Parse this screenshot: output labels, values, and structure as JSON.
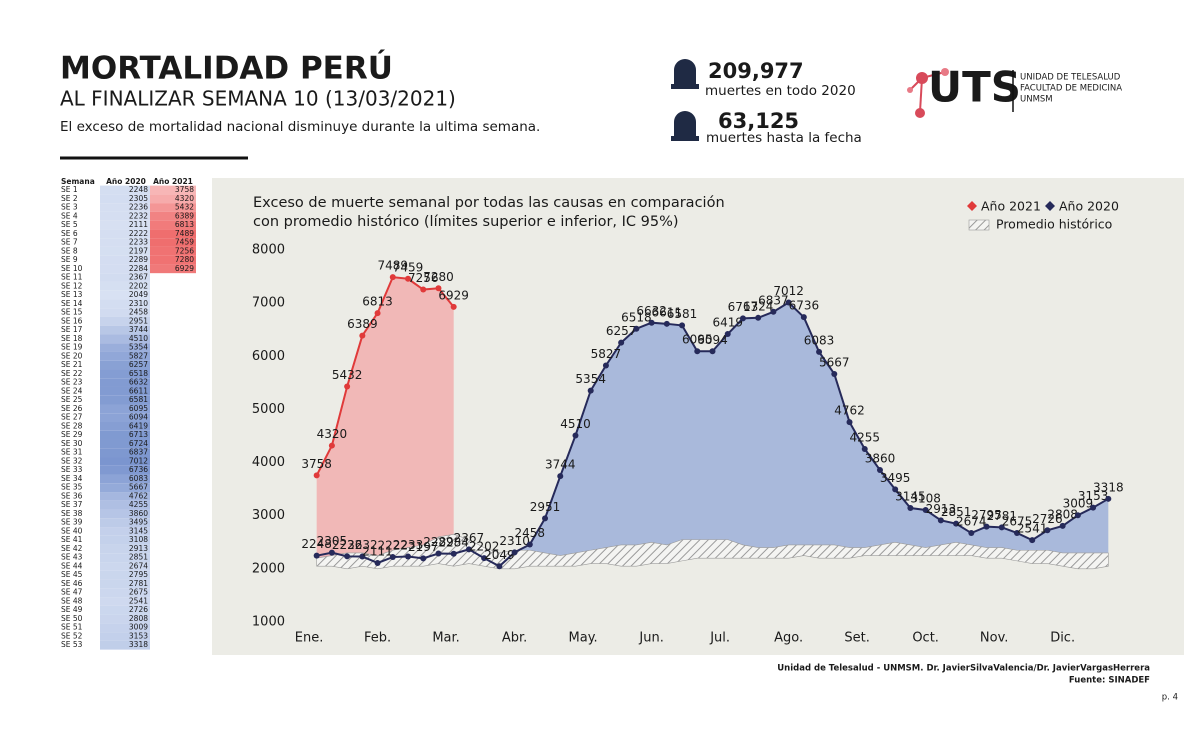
{
  "header": {
    "title": "MORTALIDAD PERÚ",
    "subtitle": "AL FINALIZAR SEMANA 10 (13/03/2021)",
    "description": "El exceso de mortalidad nacional disminuye durante la ultima semana."
  },
  "stats": [
    {
      "value": "209,977",
      "label": "muertes en todo 2020"
    },
    {
      "value": "63,125",
      "label": "muertes hasta la fecha"
    }
  ],
  "logo": {
    "name": "UTS",
    "lines": [
      "UNIDAD DE TELESALUD",
      "FACULTAD DE MEDICINA",
      "UNMSM"
    ]
  },
  "table": {
    "columns": [
      "Semana",
      "Año 2020",
      "Año 2021"
    ]
  },
  "chart_data": {
    "type": "line",
    "title": [
      "Exceso de muerte semanal por todas las causas en comparación",
      "con promedio histórico (límites superior e inferior, IC 95%)"
    ],
    "categories": [
      "SE 1",
      "SE 2",
      "SE 3",
      "SE 4",
      "SE 5",
      "SE 6",
      "SE 7",
      "SE 8",
      "SE 9",
      "SE 10",
      "SE 11",
      "SE 12",
      "SE 13",
      "SE 14",
      "SE 15",
      "SE 16",
      "SE 17",
      "SE 18",
      "SE 19",
      "SE 20",
      "SE 21",
      "SE 22",
      "SE 23",
      "SE 24",
      "SE 25",
      "SE 26",
      "SE 27",
      "SE 28",
      "SE 29",
      "SE 30",
      "SE 31",
      "SE 32",
      "SE 33",
      "SE 34",
      "SE 35",
      "SE 36",
      "SE 37",
      "SE 38",
      "SE 39",
      "SE 40",
      "SE 41",
      "SE 42",
      "SE 43",
      "SE 44",
      "SE 45",
      "SE 46",
      "SE 47",
      "SE 48",
      "SE 49",
      "SE 50",
      "SE 51",
      "SE 52",
      "SE 53"
    ],
    "series": [
      {
        "name": "Año 2021",
        "color": "#e03a3a",
        "fill": "#f2b3b1",
        "values": [
          3758,
          4320,
          5432,
          6389,
          6813,
          7489,
          7459,
          7256,
          7280,
          6929,
          null,
          null,
          null,
          null,
          null,
          null,
          null,
          null,
          null,
          null,
          null,
          null,
          null,
          null,
          null,
          null,
          null,
          null,
          null,
          null,
          null,
          null,
          null,
          null,
          null,
          null,
          null,
          null,
          null,
          null,
          null,
          null,
          null,
          null,
          null,
          null,
          null,
          null,
          null,
          null,
          null,
          null,
          null
        ]
      },
      {
        "name": "Año 2020",
        "color": "#262a5a",
        "fill": "#a2b4d9",
        "values": [
          2248,
          2305,
          2236,
          2232,
          2111,
          2222,
          2233,
          2197,
          2289,
          2284,
          2367,
          2202,
          2049,
          2310,
          2458,
          2951,
          3744,
          4510,
          5354,
          5827,
          6257,
          6518,
          6632,
          6611,
          6581,
          6095,
          6094,
          6419,
          6713,
          6724,
          6837,
          7012,
          6736,
          6083,
          5667,
          4762,
          4255,
          3860,
          3495,
          3145,
          3108,
          2913,
          2851,
          2674,
          2795,
          2781,
          2675,
          2541,
          2726,
          2808,
          3009,
          3153,
          3318
        ]
      },
      {
        "name": "Promedio histórico",
        "color": "#9a9a9a",
        "upper": [
          2200,
          2250,
          2300,
          2300,
          2250,
          2350,
          2400,
          2450,
          2600,
          2650,
          2550,
          2400,
          2300,
          2350,
          2350,
          2300,
          2250,
          2300,
          2350,
          2400,
          2450,
          2450,
          2500,
          2450,
          2550,
          2550,
          2550,
          2550,
          2450,
          2400,
          2400,
          2450,
          2450,
          2450,
          2450,
          2400,
          2400,
          2450,
          2500,
          2450,
          2400,
          2450,
          2500,
          2450,
          2400,
          2400,
          2350,
          2350,
          2350,
          2300,
          2300,
          2300,
          2300
        ],
        "lower": [
          2050,
          2050,
          2000,
          2050,
          2000,
          2050,
          2050,
          2050,
          2100,
          2050,
          2100,
          2050,
          2000,
          2000,
          2050,
          2050,
          2050,
          2050,
          2100,
          2100,
          2050,
          2050,
          2100,
          2100,
          2150,
          2200,
          2200,
          2200,
          2200,
          2200,
          2200,
          2200,
          2250,
          2200,
          2200,
          2200,
          2250,
          2250,
          2250,
          2250,
          2250,
          2250,
          2250,
          2250,
          2200,
          2200,
          2150,
          2100,
          2100,
          2050,
          2000,
          2000,
          2050
        ]
      }
    ],
    "xlim": [
      -3,
      55
    ],
    "xticks": [
      {
        "value": -0.5,
        "label": "Ene."
      },
      {
        "value": 4,
        "label": "Feb."
      },
      {
        "value": 8.5,
        "label": "Mar."
      },
      {
        "value": 13,
        "label": "Abr."
      },
      {
        "value": 17.5,
        "label": "May."
      },
      {
        "value": 22,
        "label": "Jun."
      },
      {
        "value": 26.5,
        "label": "Jul."
      },
      {
        "value": 31,
        "label": "Ago."
      },
      {
        "value": 35.5,
        "label": "Set."
      },
      {
        "value": 40,
        "label": "Oct."
      },
      {
        "value": 44.5,
        "label": "Nov."
      },
      {
        "value": 49,
        "label": "Dic."
      }
    ],
    "ylim": [
      1000,
      8000
    ],
    "yticks": [
      1000,
      2000,
      3000,
      4000,
      5000,
      6000,
      7000,
      8000
    ],
    "grid": false,
    "legend": "top-right"
  },
  "footer": {
    "credit": "Unidad de Telesalud - UNMSM. Dr. JavierSilvaValencia/Dr. JavierVargasHerrera",
    "source": "Fuente: SINADEF",
    "page": "p. 4"
  }
}
